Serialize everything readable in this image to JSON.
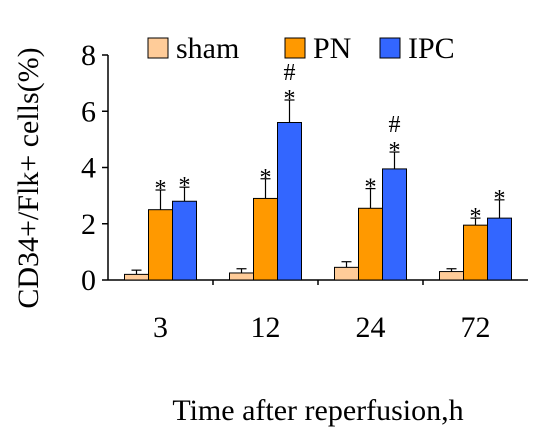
{
  "chart_data": {
    "type": "bar",
    "title": "",
    "xlabel": "Time after reperfusion,h",
    "ylabel": "CD34+/Flk+ cells(%)",
    "ylim": [
      0,
      8
    ],
    "yticks": [
      "0",
      "2",
      "4",
      "6",
      "8"
    ],
    "categories": [
      "3",
      "12",
      "24",
      "72"
    ],
    "legend_position": "top",
    "series": [
      {
        "name": "sham",
        "color": "#ffcc99",
        "values": [
          0.2,
          0.25,
          0.45,
          0.3
        ],
        "errors": [
          0.15,
          0.15,
          0.2,
          0.1
        ],
        "annotations": [
          "",
          "",
          "",
          ""
        ]
      },
      {
        "name": "PN",
        "color": "#ff9900",
        "values": [
          2.5,
          2.9,
          2.55,
          1.95
        ],
        "errors": [
          0.7,
          0.7,
          0.7,
          0.25
        ],
        "annotations": [
          "*",
          "*",
          "*",
          "*"
        ]
      },
      {
        "name": "IPC",
        "color": "#3366ff",
        "values": [
          2.8,
          5.6,
          3.95,
          2.2
        ],
        "errors": [
          0.5,
          0.8,
          0.6,
          0.65
        ],
        "annotations": [
          "*",
          "#\n*",
          "#\n*",
          "*"
        ]
      }
    ]
  }
}
